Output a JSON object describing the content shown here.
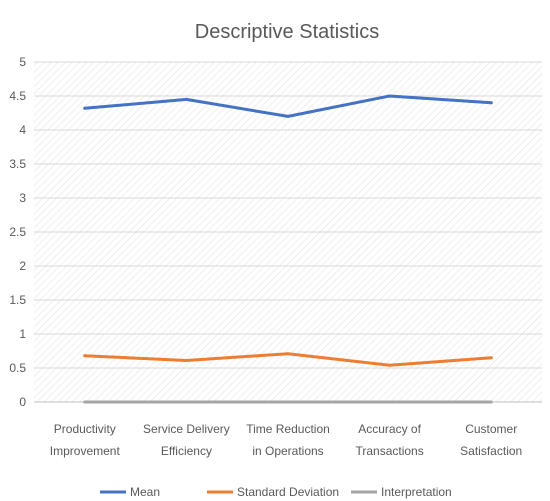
{
  "chart_data": {
    "type": "line",
    "title": "Descriptive Statistics",
    "xlabel": "",
    "ylabel": "",
    "ylim": [
      0,
      5
    ],
    "yticks": [
      "0",
      "0.5",
      "1",
      "1.5",
      "2",
      "2.5",
      "3",
      "3.5",
      "4",
      "4.5",
      "5"
    ],
    "categories": [
      [
        "Productivity",
        "Improvement"
      ],
      [
        "Service Delivery",
        "Efficiency"
      ],
      [
        "Time Reduction",
        "in Operations"
      ],
      [
        "Accuracy of",
        "Transactions"
      ],
      [
        "Customer",
        "Satisfaction"
      ]
    ],
    "series": [
      {
        "name": "Mean",
        "color": "#4472C4",
        "values": [
          4.32,
          4.45,
          4.2,
          4.5,
          4.4
        ]
      },
      {
        "name": "Standard Deviation",
        "color": "#ED7D31",
        "values": [
          0.68,
          0.61,
          0.71,
          0.54,
          0.65
        ]
      },
      {
        "name": "Interpretation",
        "color": "#A5A5A5",
        "values": [
          0,
          0,
          0,
          0,
          0
        ]
      }
    ],
    "grid": true,
    "legend_position": "bottom"
  }
}
